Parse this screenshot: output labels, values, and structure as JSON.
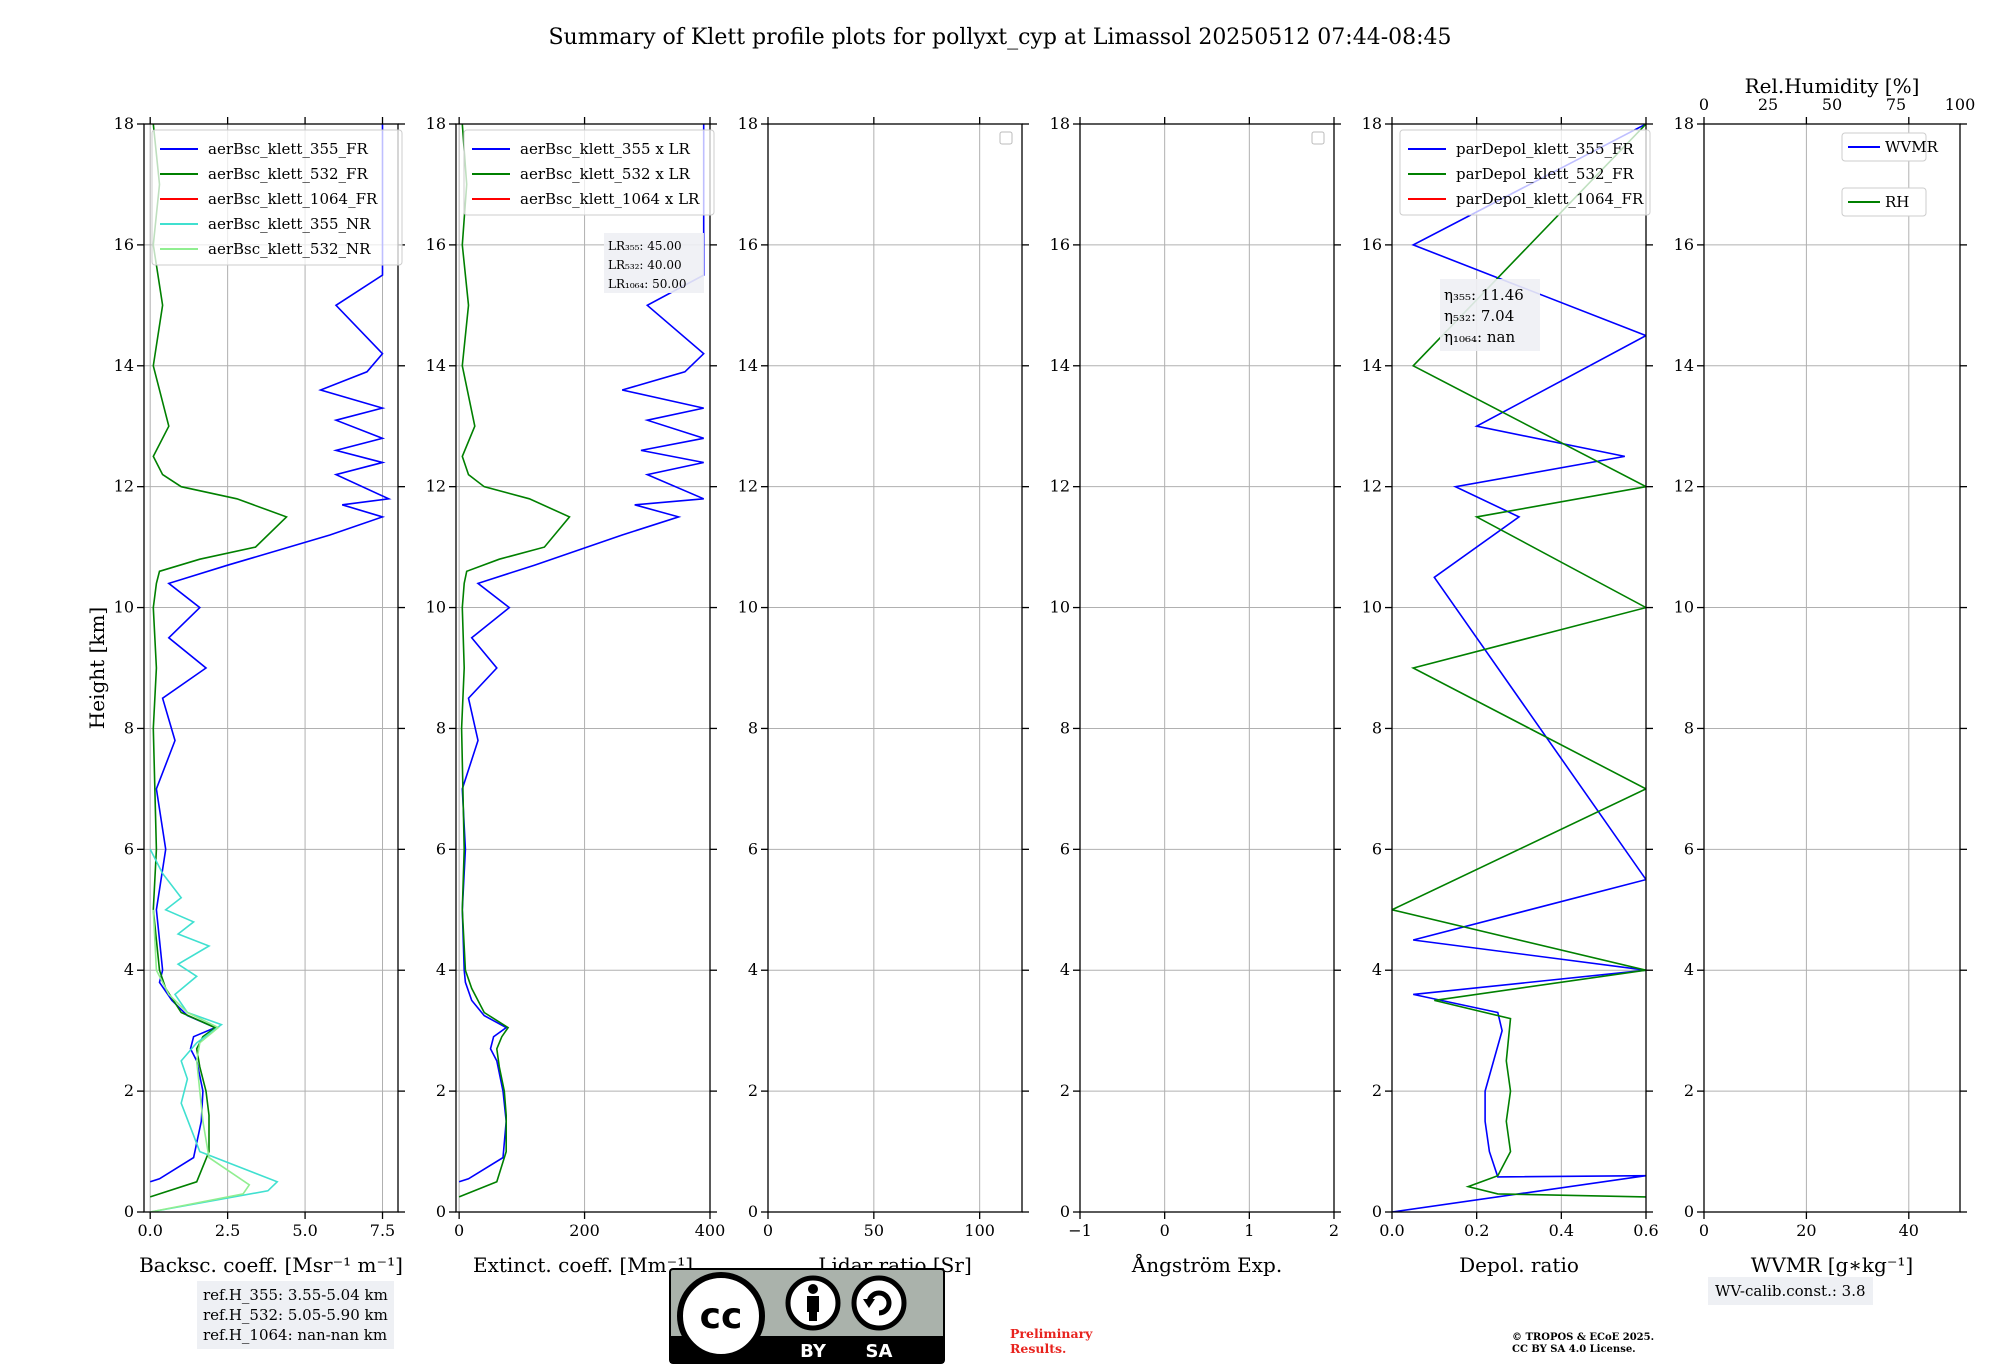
{
  "title": "Summary of Klett profile plots for pollyxt_cyp at Limassol 20250512 07:44-08:45",
  "ylabel": "Height [km]",
  "y_ticks": [
    "0",
    "2",
    "4",
    "6",
    "8",
    "10",
    "12",
    "14",
    "16",
    "18"
  ],
  "panels": [
    {
      "id": "bsc",
      "xlabel": "Backsc. coeff. [Msr$^{-1}$ m$^{-1}$]",
      "xlabel_text": "Backsc. coeff. [Msr⁻¹ m⁻¹]",
      "xlim": [
        -0.2,
        8.0
      ],
      "x_ticks": [
        "0.0",
        "2.5",
        "5.0",
        "7.5"
      ],
      "legend": [
        "aerBsc_klett_355_FR",
        "aerBsc_klett_532_FR",
        "aerBsc_klett_1064_FR",
        "aerBsc_klett_355_NR",
        "aerBsc_klett_532_NR"
      ]
    },
    {
      "id": "ext",
      "xlabel_text": "Extinct. coeff. [Mm⁻¹]",
      "xlim": [
        -5,
        400
      ],
      "x_ticks": [
        "0",
        "200",
        "400"
      ],
      "legend": [
        "aerBsc_klett_355 x LR",
        "aerBsc_klett_532 x LR",
        "aerBsc_klett_1064 x LR"
      ],
      "lr_lines": [
        "LR₃₅₅: 45.00",
        "LR₅₃₂: 40.00",
        "LR₁₀₆₄: 50.00"
      ]
    },
    {
      "id": "lr",
      "xlabel_text": "Lidar ratio [Sr]",
      "xlim": [
        0,
        120
      ],
      "x_ticks": [
        "0",
        "50",
        "100"
      ],
      "legend": []
    },
    {
      "id": "ae",
      "xlabel_text": "Ångström Exp.",
      "xlim": [
        -1,
        2
      ],
      "x_ticks": [
        "−1",
        "0",
        "1",
        "2"
      ],
      "legend": []
    },
    {
      "id": "dep",
      "xlabel_text": "Depol. ratio",
      "xlim": [
        0,
        0.6
      ],
      "x_ticks": [
        "0.0",
        "0.2",
        "0.4",
        "0.6"
      ],
      "legend": [
        "parDepol_klett_355_FR",
        "parDepol_klett_532_FR",
        "parDepol_klett_1064_FR"
      ],
      "eta_lines": [
        "η₃₅₅: 11.46",
        "η₅₃₂: 7.04",
        "η₁₀₆₄: nan"
      ]
    },
    {
      "id": "wv",
      "xlabel_text": "WVMR [g∗kg⁻¹]",
      "xlim": [
        0,
        50
      ],
      "x_ticks": [
        "0",
        "20",
        "40"
      ],
      "top_label": "Rel.Humidity [%]",
      "top_ticks": [
        "0",
        "25",
        "50",
        "75",
        "100"
      ],
      "legend": [
        "WVMR",
        "RH"
      ]
    }
  ],
  "ref_heights": [
    "ref.H_355: 3.55-5.04 km",
    "ref.H_532: 5.05-5.90 km",
    "ref.H_1064: nan-nan km"
  ],
  "wv_calib": "WV-calib.const.: 3.8",
  "license_logo": {
    "left": "cc",
    "by": "BY",
    "sa": "SA"
  },
  "preliminary": [
    "Preliminary",
    "Results."
  ],
  "copyright": [
    "© TROPOS & ECoE 2025.",
    "CC BY SA 4.0 License."
  ],
  "colors": {
    "c355": "#0000ff",
    "c532": "#008000",
    "c1064": "#ff0000",
    "c355nr": "#40e0d0",
    "c532nr": "#90ee90",
    "grid": "#b0b0b0"
  },
  "chart_data": [
    {
      "type": "line",
      "panel": "bsc",
      "ylim": [
        0,
        18
      ],
      "xlim": [
        -0.2,
        8.0
      ],
      "grid": true,
      "legend_position": "top-left",
      "series": [
        {
          "name": "aerBsc_klett_355_FR",
          "x": [
            0.0,
            0.3,
            1.4,
            1.65,
            1.7,
            1.5,
            1.3,
            1.4,
            2.1,
            1.2,
            0.7,
            0.3,
            0.4,
            0.2,
            0.5,
            0.2,
            0.8,
            0.4,
            1.8,
            0.6,
            1.6,
            0.6,
            2.5,
            5.8,
            7.5,
            6.2,
            7.7,
            6.0,
            7.5,
            6.0,
            7.5,
            6.0,
            7.5,
            5.5,
            7.0,
            7.5,
            6.0,
            7.5,
            7.5,
            7.5,
            7.5
          ],
          "y": [
            0.5,
            0.55,
            0.9,
            1.5,
            2.0,
            2.5,
            2.7,
            2.9,
            3.05,
            3.25,
            3.5,
            3.8,
            4.0,
            5.0,
            6.0,
            7.0,
            7.8,
            8.5,
            9.0,
            9.5,
            10.0,
            10.4,
            10.7,
            11.2,
            11.5,
            11.7,
            11.8,
            12.2,
            12.4,
            12.6,
            12.8,
            13.1,
            13.3,
            13.6,
            13.9,
            14.2,
            15.0,
            15.5,
            16.2,
            17.0,
            18.0
          ]
        },
        {
          "name": "aerBsc_klett_532_FR",
          "x": [
            0.0,
            1.5,
            1.9,
            1.9,
            1.8,
            1.6,
            1.5,
            1.7,
            2.1,
            1.0,
            0.5,
            0.3,
            0.1,
            0.2,
            0.1,
            0.2,
            0.1,
            0.2,
            0.3,
            1.6,
            3.4,
            4.4,
            2.8,
            1.0,
            0.4,
            0.1,
            0.6,
            0.1,
            0.4,
            0.1,
            0.3,
            0.1
          ],
          "y": [
            0.25,
            0.5,
            1.0,
            1.6,
            2.0,
            2.4,
            2.7,
            2.9,
            3.05,
            3.3,
            3.7,
            4.0,
            5.0,
            6.0,
            8.0,
            9.0,
            10.0,
            10.4,
            10.6,
            10.8,
            11.0,
            11.5,
            11.8,
            12.0,
            12.2,
            12.5,
            13.0,
            14.0,
            15.0,
            16.0,
            17.0,
            18.0
          ]
        },
        {
          "name": "aerBsc_klett_355_NR",
          "x": [
            0.0,
            3.8,
            4.1,
            1.6,
            1.0,
            1.2,
            1.0,
            1.5,
            2.3,
            1.2,
            0.8,
            1.5,
            0.9,
            1.9,
            0.9,
            1.4,
            0.5,
            1.0,
            0.4,
            0.0
          ],
          "y": [
            0.0,
            0.35,
            0.5,
            1.0,
            1.8,
            2.2,
            2.5,
            2.8,
            3.1,
            3.3,
            3.6,
            3.9,
            4.1,
            4.4,
            4.6,
            4.8,
            5.0,
            5.2,
            5.6,
            6.0
          ]
        },
        {
          "name": "aerBsc_klett_532_NR",
          "x": [
            0.0,
            3.0,
            3.2,
            1.9,
            1.7,
            1.6,
            1.5,
            1.6,
            2.2,
            1.2,
            0.6,
            0.2,
            0.1
          ],
          "y": [
            0.0,
            0.3,
            0.45,
            0.9,
            1.5,
            2.0,
            2.5,
            2.8,
            3.05,
            3.3,
            3.6,
            4.0,
            5.0
          ]
        }
      ]
    },
    {
      "type": "line",
      "panel": "ext",
      "ylim": [
        0,
        18
      ],
      "xlim": [
        -5,
        400
      ],
      "grid": true,
      "legend_position": "top-left",
      "series": [
        {
          "name": "aerBsc_klett_355 x LR",
          "x": [
            0,
            15,
            70,
            75,
            70,
            60,
            50,
            55,
            75,
            40,
            20,
            10,
            8,
            5,
            10,
            5,
            30,
            15,
            60,
            20,
            80,
            30,
            120,
            260,
            350,
            280,
            390,
            300,
            390,
            290,
            390,
            300,
            390,
            260,
            360,
            390,
            300,
            390,
            390,
            390,
            390
          ],
          "y": [
            0.5,
            0.55,
            0.9,
            1.5,
            2.0,
            2.5,
            2.7,
            2.9,
            3.05,
            3.25,
            3.5,
            3.8,
            4.0,
            5.0,
            6.0,
            7.0,
            7.8,
            8.5,
            9.0,
            9.5,
            10.0,
            10.4,
            10.7,
            11.2,
            11.5,
            11.7,
            11.8,
            12.2,
            12.4,
            12.6,
            12.8,
            13.1,
            13.3,
            13.6,
            13.9,
            14.2,
            15.0,
            15.5,
            16.2,
            17.0,
            18.0
          ]
        },
        {
          "name": "aerBsc_klett_532 x LR",
          "x": [
            0,
            60,
            75,
            75,
            72,
            64,
            60,
            68,
            78,
            40,
            20,
            10,
            5,
            8,
            4,
            8,
            5,
            8,
            12,
            64,
            136,
            176,
            112,
            40,
            15,
            5,
            25,
            5,
            15,
            5,
            12,
            5
          ],
          "y": [
            0.25,
            0.5,
            1.0,
            1.6,
            2.0,
            2.4,
            2.7,
            2.9,
            3.05,
            3.3,
            3.7,
            4.0,
            5.0,
            6.0,
            8.0,
            9.0,
            10.0,
            10.4,
            10.6,
            10.8,
            11.0,
            11.5,
            11.8,
            12.0,
            12.2,
            12.5,
            13.0,
            14.0,
            15.0,
            16.0,
            17.0,
            18.0
          ]
        }
      ]
    },
    {
      "type": "line",
      "panel": "lr",
      "ylim": [
        0,
        18
      ],
      "xlim": [
        0,
        120
      ],
      "grid": true,
      "series": []
    },
    {
      "type": "line",
      "panel": "ae",
      "ylim": [
        0,
        18
      ],
      "xlim": [
        -1,
        2
      ],
      "grid": true,
      "series": []
    },
    {
      "type": "line",
      "panel": "dep",
      "ylim": [
        0,
        18
      ],
      "xlim": [
        0,
        0.6
      ],
      "grid": true,
      "legend_position": "top-left",
      "series": [
        {
          "name": "parDepol_klett_355_FR",
          "x": [
            0.0,
            0.6,
            0.25,
            0.23,
            0.22,
            0.22,
            0.24,
            0.26,
            0.25,
            0.05,
            0.6,
            0.05,
            0.6,
            0.1,
            0.3,
            0.15,
            0.55,
            0.2,
            0.6,
            0.05,
            0.6
          ],
          "y": [
            0.0,
            0.6,
            0.58,
            1.0,
            1.5,
            2.0,
            2.5,
            3.0,
            3.3,
            3.6,
            4.0,
            4.5,
            5.5,
            10.5,
            11.5,
            12.0,
            12.5,
            13.0,
            14.5,
            16.0,
            18.0
          ]
        },
        {
          "name": "parDepol_klett_532_FR",
          "x": [
            0.6,
            0.25,
            0.18,
            0.25,
            0.28,
            0.27,
            0.28,
            0.27,
            0.28,
            0.1,
            0.6,
            0.0,
            0.6,
            0.05,
            0.6,
            0.2,
            0.6,
            0.05,
            0.6
          ],
          "y": [
            0.25,
            0.3,
            0.42,
            0.6,
            1.0,
            1.5,
            2.0,
            2.5,
            3.2,
            3.5,
            4.0,
            5.0,
            7.0,
            9.0,
            10.0,
            11.5,
            12.0,
            14.0,
            18.0
          ]
        }
      ]
    },
    {
      "type": "line",
      "panel": "wv",
      "ylim": [
        0,
        18
      ],
      "xlim": [
        0,
        50
      ],
      "top_axis_xlim": [
        0,
        100
      ],
      "grid": true,
      "legend_position": "top-right",
      "series": []
    }
  ]
}
